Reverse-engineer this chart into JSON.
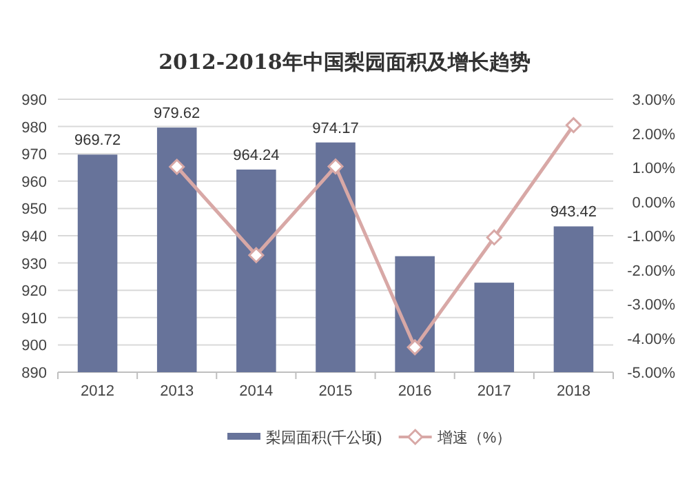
{
  "chart_data": {
    "type": "bar",
    "title": "2012-2018年中国梨园面积及增长趋势",
    "categories": [
      "2012",
      "2013",
      "2014",
      "2015",
      "2016",
      "2017",
      "2018"
    ],
    "series": [
      {
        "name": "梨园面积(千公顷)",
        "color": "#67739a",
        "values": [
          969.72,
          979.62,
          964.24,
          974.17,
          932.5,
          922.8,
          943.42
        ],
        "value_labels": [
          "969.72",
          "979.62",
          "964.24",
          "974.17",
          null,
          null,
          "943.42"
        ]
      },
      {
        "name": "增速（%）",
        "type": "line",
        "axis": "y2",
        "color": "#d8a8a6",
        "marker": "diamond",
        "line_style": "solid",
        "values": [
          null,
          1.02,
          -1.57,
          1.03,
          -4.27,
          -1.05,
          2.24
        ]
      }
    ],
    "ylim": [
      890,
      990
    ],
    "yticks": [
      890,
      900,
      910,
      920,
      930,
      940,
      950,
      960,
      970,
      980,
      990
    ],
    "y2lim": [
      -5,
      3
    ],
    "y2ticks": [
      {
        "value": -5,
        "label": "-5.00%"
      },
      {
        "value": -4,
        "label": "-4.00%"
      },
      {
        "value": -3,
        "label": "-3.00%"
      },
      {
        "value": -2,
        "label": "-2.00%"
      },
      {
        "value": -1,
        "label": "-1.00%"
      },
      {
        "value": 0,
        "label": "0.00%"
      },
      {
        "value": 1,
        "label": "1.00%"
      },
      {
        "value": 2,
        "label": "2.00%"
      },
      {
        "value": 3,
        "label": "3.00%"
      }
    ],
    "grid": "y",
    "legend": "bottom"
  }
}
